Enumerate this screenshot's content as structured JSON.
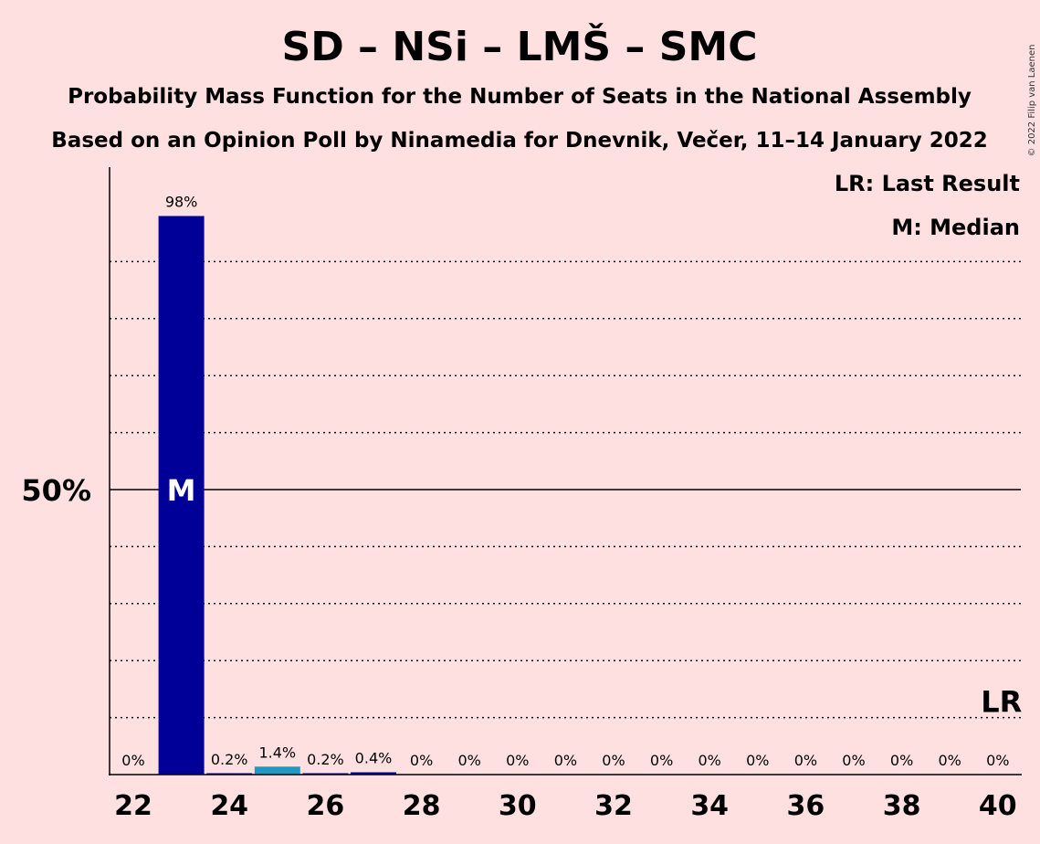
{
  "chart_data": {
    "type": "bar",
    "title": "SD – NSi – LMŠ – SMC",
    "subtitle": "Probability Mass Function for the Number of Seats in the National Assembly",
    "subtitle2": "Based on an Opinion Poll by Ninamedia for Dnevnik, Večer, 11–14 January 2022",
    "copyright": "© 2022 Filip van Laenen",
    "x": [
      22,
      23,
      24,
      25,
      26,
      27,
      28,
      29,
      30,
      31,
      32,
      33,
      34,
      35,
      36,
      37,
      38,
      39,
      40
    ],
    "values": [
      0,
      98,
      0.2,
      1.4,
      0.2,
      0.4,
      0,
      0,
      0,
      0,
      0,
      0,
      0,
      0,
      0,
      0,
      0,
      0,
      0
    ],
    "labels": [
      "0%",
      "98%",
      "0.2%",
      "1.4%",
      "0.2%",
      "0.4%",
      "0%",
      "0%",
      "0%",
      "0%",
      "0%",
      "0%",
      "0%",
      "0%",
      "0%",
      "0%",
      "0%",
      "0%",
      "0%"
    ],
    "bar_colors": [
      "#000099",
      "#000099",
      "#000099",
      "#1F9AC4",
      "#000099",
      "#000099",
      "#000099",
      "#000099",
      "#000099",
      "#000099",
      "#000099",
      "#000099",
      "#000099",
      "#000099",
      "#000099",
      "#000099",
      "#000099",
      "#000099",
      "#000099"
    ],
    "x_tick_labels": [
      "22",
      "24",
      "26",
      "28",
      "30",
      "32",
      "34",
      "36",
      "38",
      "40"
    ],
    "y_tick_label": "50%",
    "ylim": [
      0,
      105
    ],
    "gridlines": [
      10,
      20,
      30,
      40,
      60,
      70,
      80,
      90
    ],
    "major_gridline": 50,
    "median_seat": 23,
    "median_marker": "M",
    "last_result_seat": 40,
    "last_result_marker": "LR",
    "legend": [
      "LR: Last Result",
      "M: Median"
    ],
    "legend_position": "top-right"
  }
}
